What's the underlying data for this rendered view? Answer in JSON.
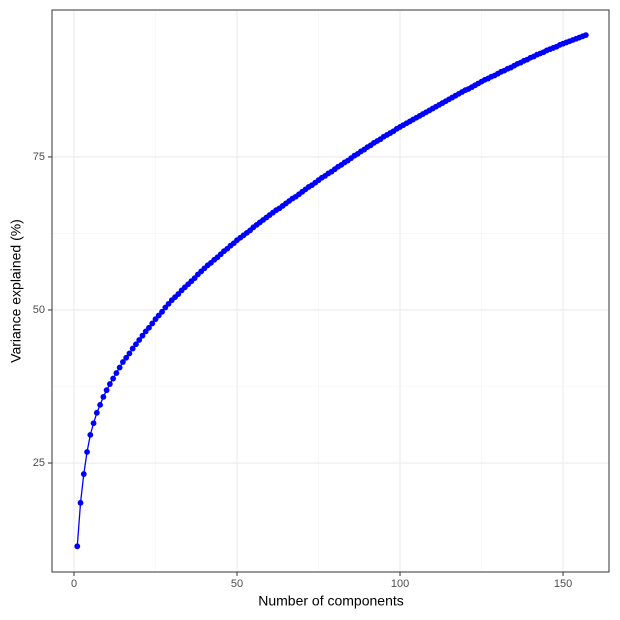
{
  "chart_data": {
    "type": "line",
    "x_label": "Number of components",
    "y_label": "Variance explained (%)",
    "color": "#0000ff",
    "markers": true,
    "grid": true,
    "xlim": [
      -6.75,
      164.1
    ],
    "xticks": [
      0,
      50,
      100,
      150
    ],
    "ylim": [
      7.2,
      99.0
    ],
    "yticks": [
      25,
      50,
      75
    ],
    "x": [
      1,
      2,
      3,
      4,
      5,
      6,
      7,
      8,
      9,
      10,
      11,
      12,
      13,
      14,
      15,
      16,
      17,
      18,
      19,
      20,
      21,
      22,
      23,
      24,
      25,
      26,
      27,
      28,
      29,
      30,
      31,
      32,
      33,
      34,
      35,
      36,
      37,
      38,
      39,
      40,
      41,
      42,
      43,
      44,
      45,
      46,
      47,
      48,
      49,
      50,
      51,
      52,
      53,
      54,
      55,
      56,
      57,
      58,
      59,
      60,
      61,
      62,
      63,
      64,
      65,
      66,
      67,
      68,
      69,
      70,
      71,
      72,
      73,
      74,
      75,
      76,
      77,
      78,
      79,
      80,
      81,
      82,
      83,
      84,
      85,
      86,
      87,
      88,
      89,
      90,
      91,
      92,
      93,
      94,
      95,
      96,
      97,
      98,
      99,
      100,
      101,
      102,
      103,
      104,
      105,
      106,
      107,
      108,
      109,
      110,
      111,
      112,
      113,
      114,
      115,
      116,
      117,
      118,
      119,
      120,
      121,
      122,
      123,
      124,
      125,
      126,
      127,
      128,
      129,
      130,
      131,
      132,
      133,
      134,
      135,
      136,
      137,
      138,
      139,
      140,
      141,
      142,
      143,
      144,
      145,
      146,
      147,
      148,
      149,
      150,
      151,
      152,
      153,
      154,
      155,
      156,
      157
    ],
    "values": [
      11.4,
      18.5,
      23.2,
      26.8,
      29.6,
      31.5,
      33.2,
      34.5,
      35.8,
      36.9,
      37.9,
      38.8,
      39.7,
      40.6,
      41.5,
      42.2,
      42.9,
      43.7,
      44.4,
      45.1,
      45.8,
      46.5,
      47.1,
      47.8,
      48.5,
      49.1,
      49.7,
      50.4,
      51.0,
      51.6,
      52.1,
      52.6,
      53.2,
      53.7,
      54.2,
      54.7,
      55.2,
      55.8,
      56.3,
      56.8,
      57.3,
      57.7,
      58.2,
      58.6,
      59.1,
      59.6,
      60.0,
      60.5,
      60.9,
      61.4,
      61.8,
      62.2,
      62.6,
      63.0,
      63.5,
      63.9,
      64.3,
      64.7,
      65.1,
      65.5,
      65.9,
      66.3,
      66.6,
      67.0,
      67.4,
      67.8,
      68.2,
      68.5,
      68.9,
      69.3,
      69.7,
      70.1,
      70.4,
      70.8,
      71.2,
      71.6,
      71.9,
      72.3,
      72.6,
      73.0,
      73.4,
      73.7,
      74.1,
      74.4,
      74.8,
      75.2,
      75.5,
      75.9,
      76.2,
      76.6,
      76.9,
      77.3,
      77.6,
      77.9,
      78.3,
      78.6,
      78.9,
      79.2,
      79.6,
      79.9,
      80.2,
      80.5,
      80.8,
      81.1,
      81.4,
      81.7,
      82.0,
      82.3,
      82.6,
      82.9,
      83.2,
      83.5,
      83.8,
      84.1,
      84.4,
      84.7,
      85.0,
      85.3,
      85.6,
      85.9,
      86.1,
      86.4,
      86.7,
      87.0,
      87.3,
      87.6,
      87.8,
      88.1,
      88.3,
      88.6,
      88.9,
      89.1,
      89.4,
      89.6,
      89.9,
      90.2,
      90.4,
      90.7,
      90.9,
      91.2,
      91.4,
      91.7,
      91.9,
      92.1,
      92.4,
      92.6,
      92.8,
      93.0,
      93.3,
      93.5,
      93.7,
      93.9,
      94.1,
      94.3,
      94.5,
      94.7,
      94.9
    ]
  }
}
